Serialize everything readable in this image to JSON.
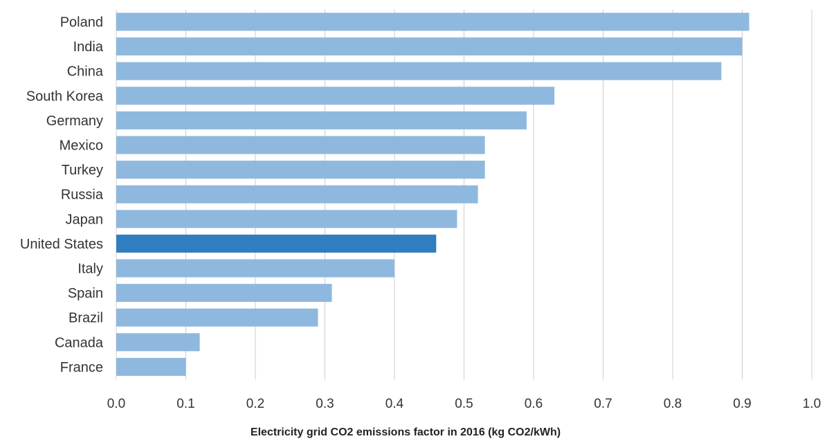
{
  "chart_data": {
    "type": "bar",
    "orientation": "horizontal",
    "title": "",
    "xlabel": "Electricity grid CO2 emissions factor in 2016 (kg CO2/kWh)",
    "ylabel": "",
    "categories": [
      "Poland",
      "India",
      "China",
      "South Korea",
      "Germany",
      "Mexico",
      "Turkey",
      "Russia",
      "Japan",
      "United States",
      "Italy",
      "Spain",
      "Brazil",
      "Canada",
      "France"
    ],
    "values": [
      0.91,
      0.9,
      0.87,
      0.63,
      0.59,
      0.53,
      0.53,
      0.52,
      0.49,
      0.46,
      0.4,
      0.31,
      0.29,
      0.12,
      0.1
    ],
    "highlight": "United States",
    "xlim": [
      0,
      1.0
    ],
    "x_ticks": [
      "0.0",
      "0.1",
      "0.2",
      "0.3",
      "0.4",
      "0.5",
      "0.6",
      "0.7",
      "0.8",
      "0.9",
      "1.0"
    ],
    "grid": "vertical",
    "legend": "none",
    "colors": {
      "bar": "#8fb8de",
      "highlight": "#2f7ec1",
      "grid": "#cccccc"
    }
  }
}
